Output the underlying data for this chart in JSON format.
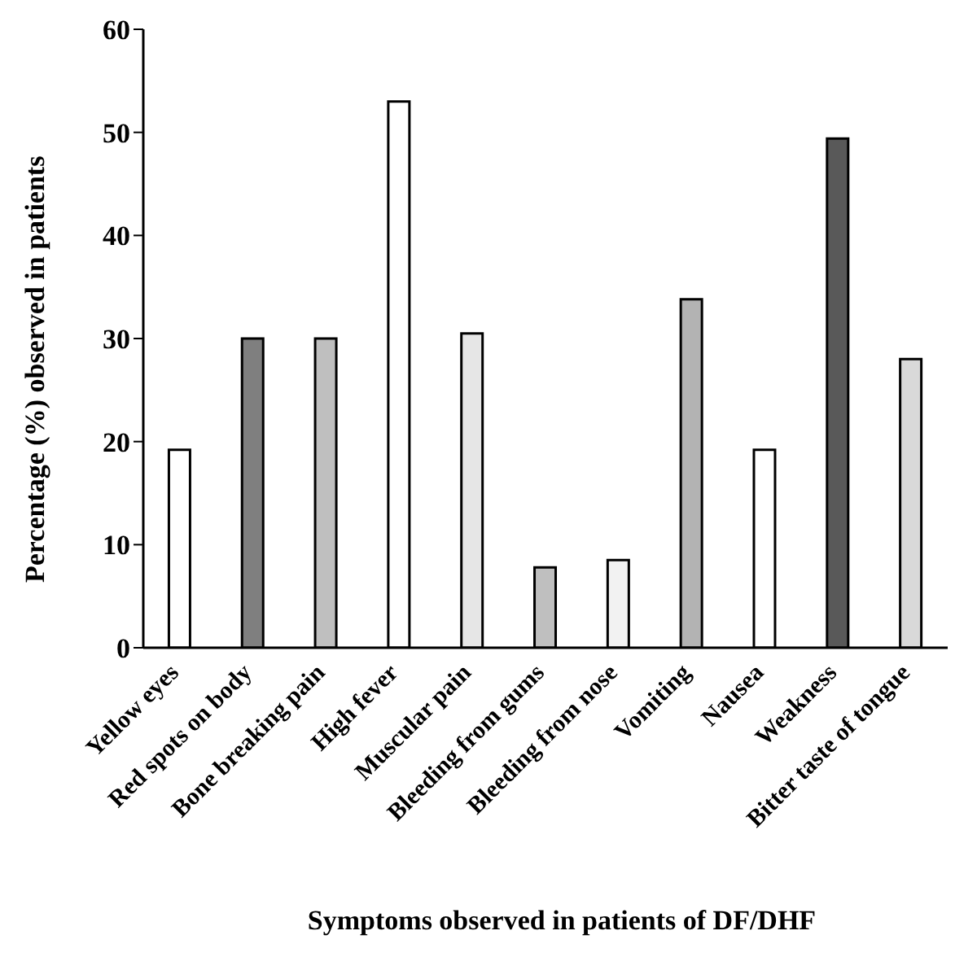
{
  "chart_data": {
    "type": "bar",
    "xlabel": "Symptoms observed in patients of DF/DHF",
    "ylabel": "Percentage (%) observed in patients",
    "categories": [
      "Yellow eyes",
      "Red spots on body",
      "Bone breaking pain",
      "High fever",
      "Muscular pain",
      "Bleeding from gums",
      "Bleeding from nose",
      "Vomiting",
      "Nausea",
      "Weakness",
      "Bitter taste of tongue"
    ],
    "values": [
      19.2,
      30,
      30,
      53,
      30.5,
      7.8,
      8.5,
      33.8,
      19.2,
      49.4,
      28
    ],
    "colors": [
      "#ffffff",
      "#7f7f7f",
      "#bfbfbf",
      "#ffffff",
      "#e6e6e6",
      "#bfbfbf",
      "#f2f2f2",
      "#b3b3b3",
      "#ffffff",
      "#595959",
      "#d9d9d9"
    ],
    "ylim": [
      0,
      60
    ],
    "yticks": [
      0,
      10,
      20,
      30,
      40,
      50,
      60
    ],
    "grid": false,
    "legend": false
  }
}
